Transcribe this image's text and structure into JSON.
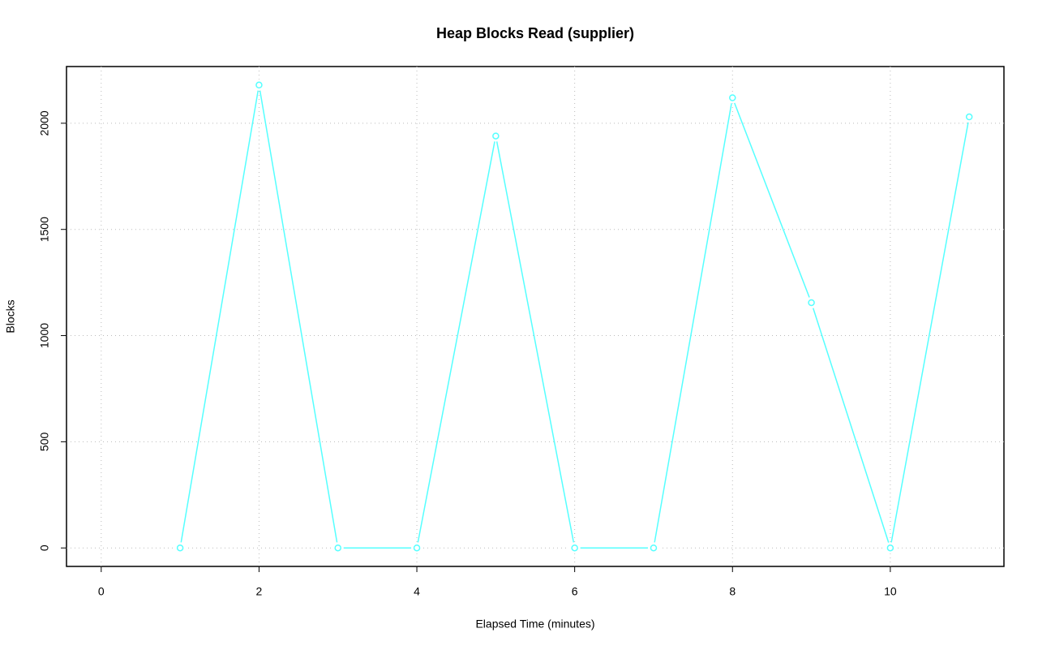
{
  "chart_data": {
    "type": "line",
    "title": "Heap Blocks Read (supplier)",
    "x_label": "Elapsed Time (minutes)",
    "y_label": "Blocks",
    "x": [
      1,
      2,
      3,
      4,
      5,
      6,
      7,
      8,
      9,
      10,
      11
    ],
    "values": [
      0,
      2180,
      0,
      0,
      1940,
      0,
      0,
      2120,
      1155,
      0,
      2030
    ],
    "color": "#55ffff",
    "xlim": [
      -0.44,
      11.44
    ],
    "xticks": [
      0,
      2,
      4,
      6,
      8,
      10
    ],
    "ylim": [
      -87,
      2267
    ],
    "yticks": [
      0,
      500,
      1000,
      1500,
      2000
    ],
    "grid": true
  }
}
